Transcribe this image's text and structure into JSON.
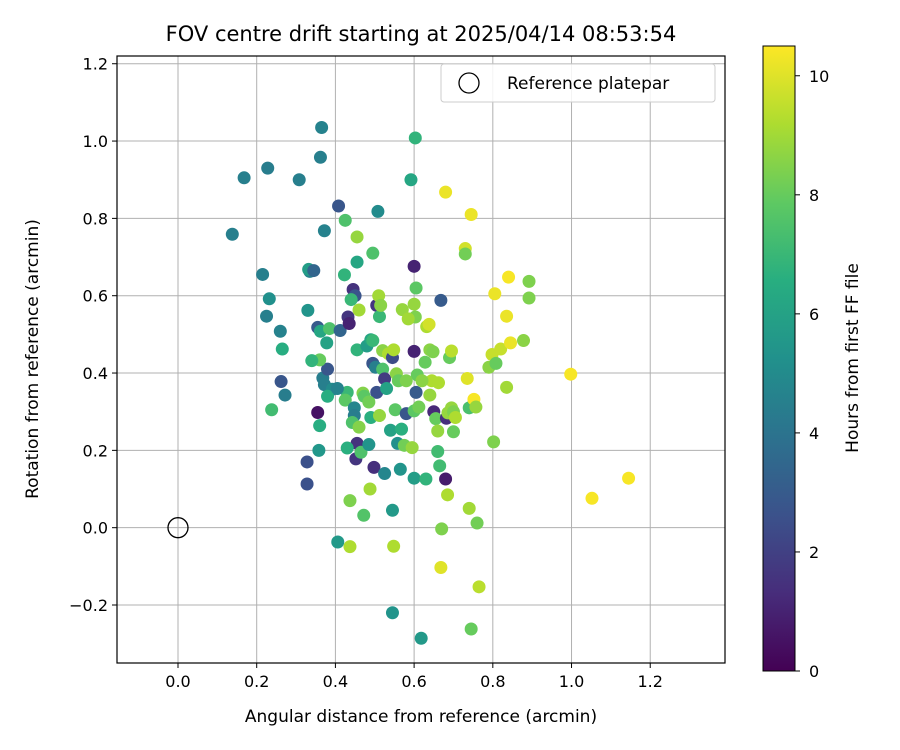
{
  "chart_data": {
    "type": "scatter",
    "title": "FOV centre drift starting at 2025/04/14 08:53:54",
    "xlabel": "Angular distance from reference (arcmin)",
    "ylabel": "Rotation from reference (arcmin)",
    "xlim": [
      -0.155,
      1.39
    ],
    "ylim": [
      -0.35,
      1.22
    ],
    "xticks": [
      "0.0",
      "0.2",
      "0.4",
      "0.6",
      "0.8",
      "1.0",
      "1.2"
    ],
    "yticks": [
      "−0.2",
      "0.0",
      "0.2",
      "0.4",
      "0.6",
      "0.8",
      "1.0",
      "1.2"
    ],
    "grid": true,
    "legend": {
      "position": "upper right",
      "entries": [
        "Reference platepar"
      ]
    },
    "reference_point": {
      "x": 0.0,
      "y": 0.0
    },
    "colorbar": {
      "label": "Hours from first FF file",
      "colormap": "viridis",
      "range": [
        0,
        10.5
      ],
      "ticks": [
        "0",
        "2",
        "4",
        "6",
        "8",
        "10"
      ]
    },
    "series": [
      {
        "points": [
          [
            0.365,
            1.035,
            4.6
          ],
          [
            0.362,
            0.958,
            4.5
          ],
          [
            0.228,
            0.93,
            4.4
          ],
          [
            0.168,
            0.905,
            4.5
          ],
          [
            0.308,
            0.9,
            4.5
          ],
          [
            0.138,
            0.759,
            4.5
          ],
          [
            0.372,
            0.768,
            4.6
          ],
          [
            0.215,
            0.655,
            4.5
          ],
          [
            0.225,
            0.547,
            4.5
          ],
          [
            0.26,
            0.508,
            4.6
          ],
          [
            0.335,
            0.663,
            4.6
          ],
          [
            0.33,
            0.562,
            5.4
          ],
          [
            0.232,
            0.592,
            5.2
          ],
          [
            0.265,
            0.462,
            6.5
          ],
          [
            0.238,
            0.305,
            7.2
          ],
          [
            0.272,
            0.343,
            4.4
          ],
          [
            0.262,
            0.378,
            2.8
          ],
          [
            0.328,
            0.17,
            2.6
          ],
          [
            0.328,
            0.113,
            2.6
          ],
          [
            0.355,
            0.298,
            0.5
          ],
          [
            0.358,
            0.2,
            5.5
          ],
          [
            0.36,
            0.264,
            6.5
          ],
          [
            0.355,
            0.518,
            3.0
          ],
          [
            0.368,
            0.387,
            4.4
          ],
          [
            0.372,
            0.37,
            4.5
          ],
          [
            0.38,
            0.41,
            2.8
          ],
          [
            0.392,
            0.358,
            5.0
          ],
          [
            0.38,
            0.34,
            6.5
          ],
          [
            0.362,
            0.508,
            6.2
          ],
          [
            0.378,
            0.478,
            6.0
          ],
          [
            0.385,
            0.515,
            7.5
          ],
          [
            0.408,
            0.832,
            2.8
          ],
          [
            0.425,
            0.795,
            7.5
          ],
          [
            0.423,
            0.654,
            6.8
          ],
          [
            0.412,
            0.51,
            3.4
          ],
          [
            0.432,
            0.545,
            1.6
          ],
          [
            0.435,
            0.528,
            1.0
          ],
          [
            0.445,
            0.616,
            1.5
          ],
          [
            0.45,
            0.6,
            2.7
          ],
          [
            0.44,
            0.59,
            7.0
          ],
          [
            0.455,
            0.687,
            6.2
          ],
          [
            0.455,
            0.752,
            8.8
          ],
          [
            0.46,
            0.563,
            9.0
          ],
          [
            0.455,
            0.46,
            6.8
          ],
          [
            0.43,
            0.35,
            7.0
          ],
          [
            0.425,
            0.33,
            7.8
          ],
          [
            0.448,
            0.31,
            4.8
          ],
          [
            0.448,
            0.29,
            4.4
          ],
          [
            0.443,
            0.272,
            7.5
          ],
          [
            0.46,
            0.26,
            8.5
          ],
          [
            0.455,
            0.218,
            1.5
          ],
          [
            0.452,
            0.178,
            1.6
          ],
          [
            0.465,
            0.195,
            7.5
          ],
          [
            0.43,
            0.206,
            6.6
          ],
          [
            0.485,
            0.215,
            5.4
          ],
          [
            0.47,
            0.348,
            8.5
          ],
          [
            0.48,
            0.47,
            5.8
          ],
          [
            0.49,
            0.486,
            6.2
          ],
          [
            0.495,
            0.425,
            2.8
          ],
          [
            0.502,
            0.415,
            4.5
          ],
          [
            0.495,
            0.484,
            7.0
          ],
          [
            0.495,
            0.71,
            7.5
          ],
          [
            0.508,
            0.818,
            5.0
          ],
          [
            0.505,
            0.575,
            1.6
          ],
          [
            0.51,
            0.6,
            9.0
          ],
          [
            0.512,
            0.546,
            7.0
          ],
          [
            0.515,
            0.575,
            8.6
          ],
          [
            0.52,
            0.458,
            8.6
          ],
          [
            0.52,
            0.41,
            7.5
          ],
          [
            0.525,
            0.385,
            1.8
          ],
          [
            0.505,
            0.35,
            2.6
          ],
          [
            0.49,
            0.285,
            6.6
          ],
          [
            0.53,
            0.36,
            6.0
          ],
          [
            0.512,
            0.29,
            8.8
          ],
          [
            0.535,
            0.45,
            9.2
          ],
          [
            0.545,
            0.44,
            2.4
          ],
          [
            0.548,
            0.46,
            9.2
          ],
          [
            0.555,
            0.398,
            8.6
          ],
          [
            0.56,
            0.38,
            8.0
          ],
          [
            0.552,
            0.305,
            7.8
          ],
          [
            0.54,
            0.252,
            6.0
          ],
          [
            0.558,
            0.218,
            5.2
          ],
          [
            0.568,
            0.255,
            6.6
          ],
          [
            0.575,
            0.213,
            8.2
          ],
          [
            0.58,
            0.295,
            2.8
          ],
          [
            0.6,
            0.302,
            7.8
          ],
          [
            0.595,
            0.207,
            8.8
          ],
          [
            0.6,
            0.128,
            5.8
          ],
          [
            0.6,
            0.456,
            1.0
          ],
          [
            0.603,
            1.008,
            6.8
          ],
          [
            0.592,
            0.9,
            6.2
          ],
          [
            0.6,
            0.676,
            1.0
          ],
          [
            0.605,
            0.62,
            7.8
          ],
          [
            0.6,
            0.578,
            8.8
          ],
          [
            0.603,
            0.545,
            8.4
          ],
          [
            0.608,
            0.395,
            8.0
          ],
          [
            0.605,
            0.35,
            3.0
          ],
          [
            0.612,
            0.312,
            8.2
          ],
          [
            0.628,
            0.428,
            8.0
          ],
          [
            0.632,
            0.52,
            9.2
          ],
          [
            0.638,
            0.526,
            9.8
          ],
          [
            0.64,
            0.46,
            8.6
          ],
          [
            0.648,
            0.455,
            8.4
          ],
          [
            0.645,
            0.38,
            9.2
          ],
          [
            0.65,
            0.3,
            1.2
          ],
          [
            0.655,
            0.282,
            8.0
          ],
          [
            0.66,
            0.25,
            8.8
          ],
          [
            0.64,
            0.343,
            8.8
          ],
          [
            0.662,
            0.375,
            9.2
          ],
          [
            0.66,
            0.197,
            7.2
          ],
          [
            0.665,
            0.16,
            7.2
          ],
          [
            0.63,
            0.126,
            6.8
          ],
          [
            0.668,
            0.588,
            3.0
          ],
          [
            0.68,
            0.868,
            10.2
          ],
          [
            0.682,
            0.283,
            1.4
          ],
          [
            0.686,
            0.297,
            8.8
          ],
          [
            0.695,
            0.31,
            8.8
          ],
          [
            0.69,
            0.44,
            8.0
          ],
          [
            0.695,
            0.457,
            9.4
          ],
          [
            0.7,
            0.3,
            8.4
          ],
          [
            0.705,
            0.285,
            9.2
          ],
          [
            0.7,
            0.248,
            8.0
          ],
          [
            0.68,
            0.126,
            0.8
          ],
          [
            0.685,
            0.085,
            9.2
          ],
          [
            0.67,
            -0.003,
            8.4
          ],
          [
            0.668,
            -0.103,
            10.0
          ],
          [
            0.73,
            0.722,
            9.8
          ],
          [
            0.73,
            0.708,
            8.2
          ],
          [
            0.735,
            0.386,
            10.0
          ],
          [
            0.74,
            0.31,
            7.4
          ],
          [
            0.745,
            0.81,
            10.2
          ],
          [
            0.752,
            0.332,
            10.4
          ],
          [
            0.757,
            0.312,
            8.8
          ],
          [
            0.74,
            0.05,
            9.0
          ],
          [
            0.76,
            0.012,
            8.2
          ],
          [
            0.765,
            -0.153,
            9.4
          ],
          [
            0.745,
            -0.262,
            8.0
          ],
          [
            0.79,
            0.415,
            8.6
          ],
          [
            0.798,
            0.448,
            9.6
          ],
          [
            0.805,
            0.605,
            10.2
          ],
          [
            0.808,
            0.425,
            8.0
          ],
          [
            0.802,
            0.222,
            8.4
          ],
          [
            0.82,
            0.462,
            9.6
          ],
          [
            0.835,
            0.547,
            10.2
          ],
          [
            0.835,
            0.363,
            9.0
          ],
          [
            0.84,
            0.648,
            10.4
          ],
          [
            0.845,
            0.478,
            10.2
          ],
          [
            0.878,
            0.484,
            8.6
          ],
          [
            0.892,
            0.637,
            8.4
          ],
          [
            0.892,
            0.594,
            8.4
          ],
          [
            0.998,
            0.397,
            10.4
          ],
          [
            1.052,
            0.076,
            10.4
          ],
          [
            1.145,
            0.128,
            10.4
          ],
          [
            0.406,
            -0.037,
            5.6
          ],
          [
            0.437,
            -0.049,
            9.2
          ],
          [
            0.437,
            0.07,
            8.4
          ],
          [
            0.472,
            0.032,
            7.6
          ],
          [
            0.488,
            0.1,
            9.0
          ],
          [
            0.548,
            -0.048,
            9.2
          ],
          [
            0.545,
            0.045,
            5.6
          ],
          [
            0.545,
            -0.22,
            5.4
          ],
          [
            0.618,
            -0.286,
            5.6
          ],
          [
            0.498,
            0.156,
            1.4
          ],
          [
            0.525,
            0.14,
            4.8
          ],
          [
            0.565,
            0.151,
            5.4
          ],
          [
            0.405,
            0.36,
            4.6
          ],
          [
            0.36,
            0.434,
            8.0
          ],
          [
            0.34,
            0.432,
            6.8
          ],
          [
            0.332,
            0.668,
            5.8
          ],
          [
            0.345,
            0.665,
            3.4
          ],
          [
            0.473,
            0.34,
            7.8
          ],
          [
            0.485,
            0.325,
            8.2
          ],
          [
            0.57,
            0.564,
            8.8
          ],
          [
            0.585,
            0.54,
            9.0
          ],
          [
            0.58,
            0.38,
            8.4
          ],
          [
            0.62,
            0.38,
            8.6
          ]
        ]
      }
    ]
  }
}
